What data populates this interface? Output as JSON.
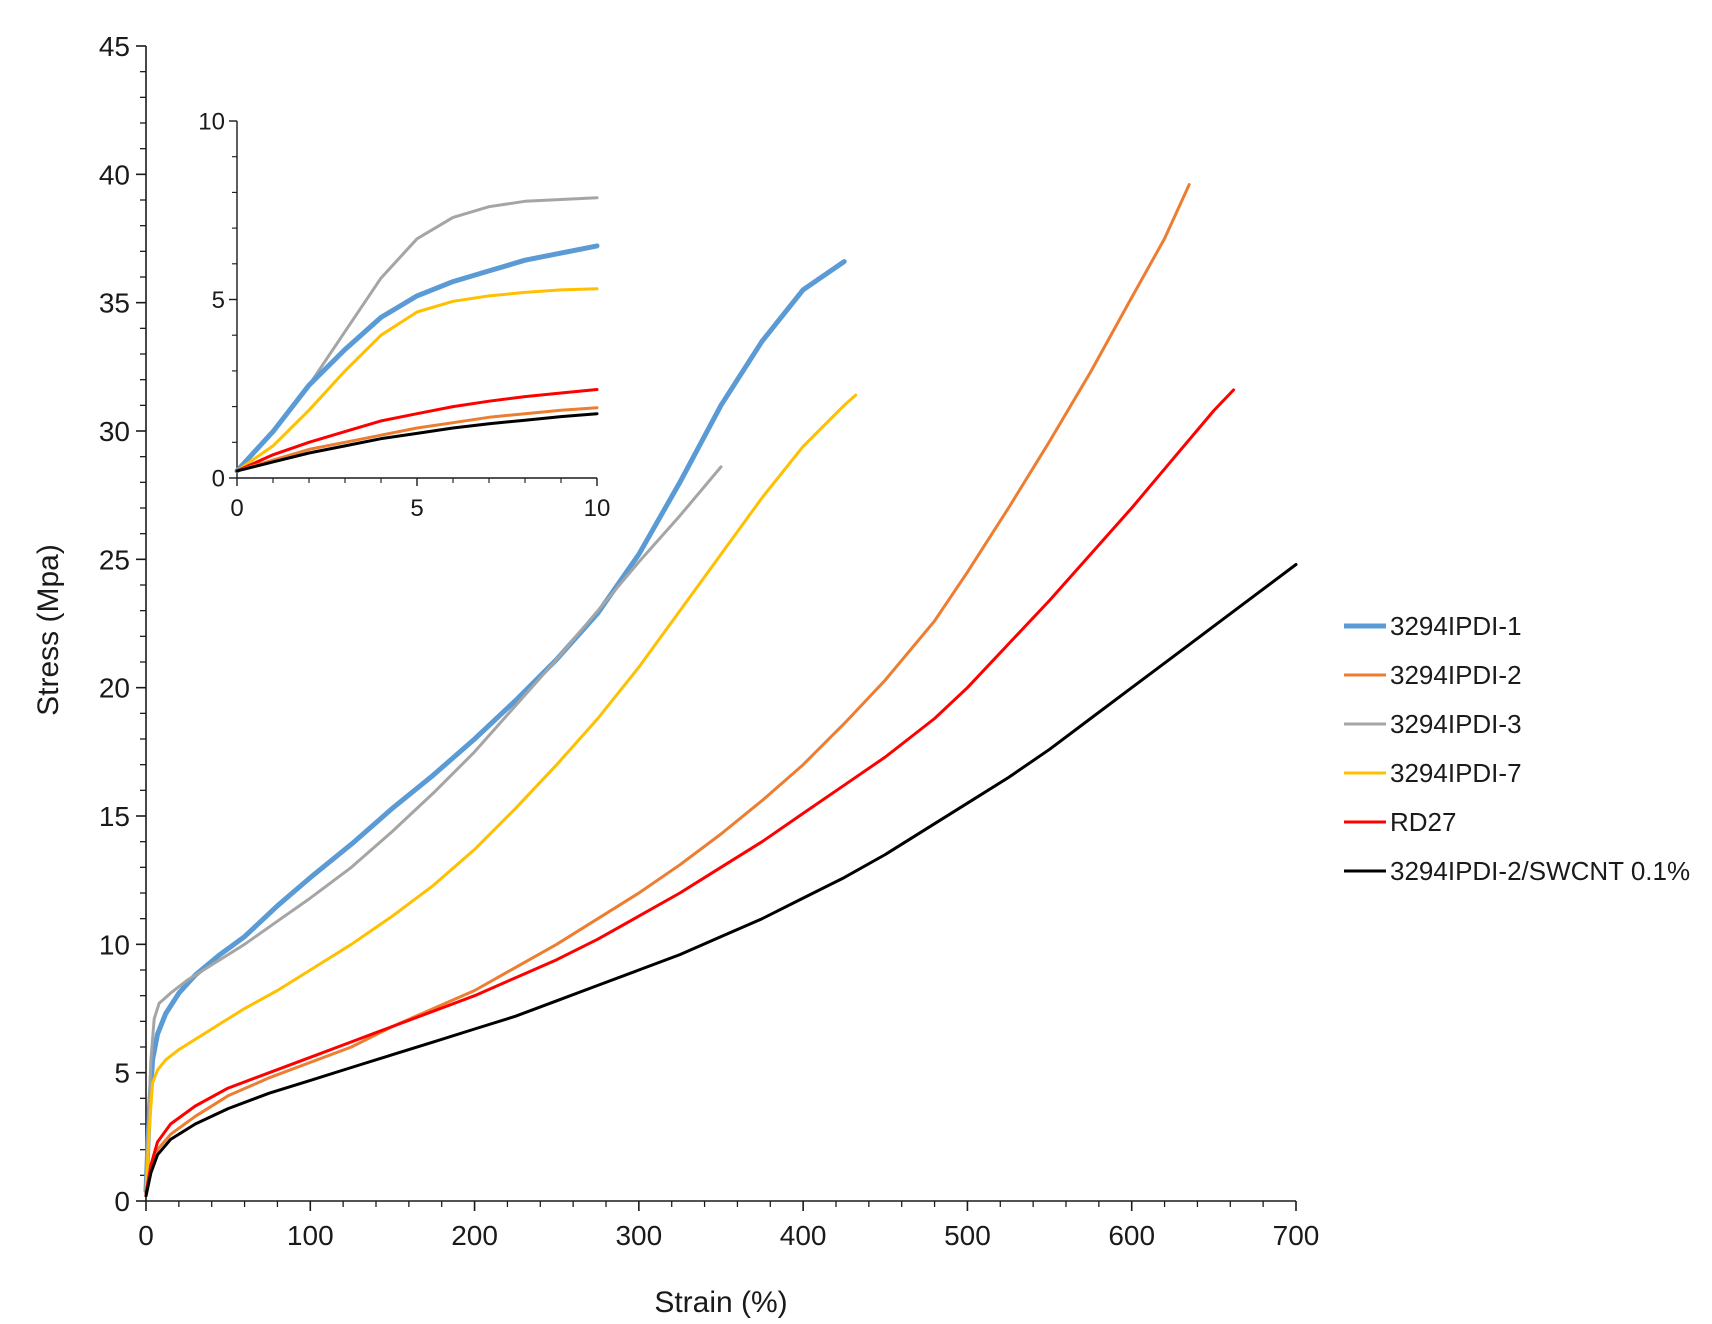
{
  "chart_data": [
    {
      "id": "main",
      "type": "line",
      "title": "",
      "xlabel": "Strain (%)",
      "ylabel": "Stress (Mpa)",
      "xlim": [
        0,
        700
      ],
      "ylim": [
        0,
        45
      ],
      "xticks": [
        0,
        100,
        200,
        300,
        400,
        500,
        600,
        700
      ],
      "yticks": [
        0,
        5,
        10,
        15,
        20,
        25,
        30,
        35,
        40,
        45
      ],
      "grid": false,
      "legend": "right",
      "series": [
        {
          "name": "3294IPDI-1",
          "color": "#5b9bd5",
          "width": 5,
          "points": [
            [
              0,
              0.4
            ],
            [
              2,
              3.5
            ],
            [
              4,
              5.5
            ],
            [
              7,
              6.5
            ],
            [
              12,
              7.3
            ],
            [
              20,
              8.1
            ],
            [
              30,
              8.8
            ],
            [
              45,
              9.6
            ],
            [
              60,
              10.3
            ],
            [
              80,
              11.5
            ],
            [
              100,
              12.6
            ],
            [
              125,
              13.9
            ],
            [
              150,
              15.3
            ],
            [
              175,
              16.6
            ],
            [
              200,
              18
            ],
            [
              225,
              19.5
            ],
            [
              250,
              21.1
            ],
            [
              275,
              22.9
            ],
            [
              300,
              25.2
            ],
            [
              325,
              28
            ],
            [
              350,
              31
            ],
            [
              375,
              33.5
            ],
            [
              400,
              35.5
            ],
            [
              425,
              36.6
            ]
          ]
        },
        {
          "name": "3294IPDI-2",
          "color": "#ed7d31",
          "width": 3,
          "points": [
            [
              0,
              0.2
            ],
            [
              3,
              1.2
            ],
            [
              7,
              2
            ],
            [
              15,
              2.6
            ],
            [
              30,
              3.3
            ],
            [
              50,
              4.1
            ],
            [
              75,
              4.8
            ],
            [
              100,
              5.4
            ],
            [
              125,
              6
            ],
            [
              150,
              6.8
            ],
            [
              175,
              7.5
            ],
            [
              200,
              8.2
            ],
            [
              225,
              9.1
            ],
            [
              250,
              10
            ],
            [
              275,
              11
            ],
            [
              300,
              12
            ],
            [
              325,
              13.1
            ],
            [
              350,
              14.3
            ],
            [
              375,
              15.6
            ],
            [
              400,
              17
            ],
            [
              425,
              18.6
            ],
            [
              450,
              20.3
            ],
            [
              480,
              22.6
            ],
            [
              500,
              24.5
            ],
            [
              525,
              27
            ],
            [
              550,
              29.6
            ],
            [
              575,
              32.3
            ],
            [
              600,
              35.2
            ],
            [
              620,
              37.5
            ],
            [
              635,
              39.6
            ]
          ]
        },
        {
          "name": "3294IPDI-3",
          "color": "#a5a5a5",
          "width": 3,
          "points": [
            [
              0,
              0.5
            ],
            [
              1.5,
              3
            ],
            [
              3,
              5.5
            ],
            [
              5,
              7.1
            ],
            [
              8,
              7.7
            ],
            [
              15,
              8.1
            ],
            [
              25,
              8.6
            ],
            [
              40,
              9.2
            ],
            [
              60,
              10
            ],
            [
              80,
              10.9
            ],
            [
              100,
              11.8
            ],
            [
              125,
              13
            ],
            [
              150,
              14.4
            ],
            [
              175,
              15.9
            ],
            [
              200,
              17.5
            ],
            [
              225,
              19.3
            ],
            [
              250,
              21.1
            ],
            [
              275,
              23
            ],
            [
              300,
              24.9
            ],
            [
              325,
              26.7
            ],
            [
              350,
              28.6
            ]
          ]
        },
        {
          "name": "3294IPDI-7",
          "color": "#ffc000",
          "width": 3,
          "points": [
            [
              0,
              0.3
            ],
            [
              2,
              2.8
            ],
            [
              4,
              4.6
            ],
            [
              7,
              5.1
            ],
            [
              12,
              5.5
            ],
            [
              20,
              5.9
            ],
            [
              30,
              6.3
            ],
            [
              45,
              6.9
            ],
            [
              60,
              7.5
            ],
            [
              80,
              8.2
            ],
            [
              100,
              9
            ],
            [
              125,
              10
            ],
            [
              150,
              11.1
            ],
            [
              175,
              12.3
            ],
            [
              200,
              13.7
            ],
            [
              225,
              15.3
            ],
            [
              250,
              17
            ],
            [
              275,
              18.8
            ],
            [
              300,
              20.8
            ],
            [
              325,
              23
            ],
            [
              350,
              25.2
            ],
            [
              375,
              27.4
            ],
            [
              400,
              29.4
            ],
            [
              425,
              31
            ],
            [
              432,
              31.4
            ]
          ]
        },
        {
          "name": "RD27",
          "color": "#ff0000",
          "width": 3,
          "points": [
            [
              0,
              0.3
            ],
            [
              3,
              1.4
            ],
            [
              7,
              2.3
            ],
            [
              15,
              3
            ],
            [
              30,
              3.7
            ],
            [
              50,
              4.4
            ],
            [
              75,
              5
            ],
            [
              100,
              5.6
            ],
            [
              125,
              6.2
            ],
            [
              150,
              6.8
            ],
            [
              175,
              7.4
            ],
            [
              200,
              8
            ],
            [
              225,
              8.7
            ],
            [
              250,
              9.4
            ],
            [
              275,
              10.2
            ],
            [
              300,
              11.1
            ],
            [
              325,
              12
            ],
            [
              350,
              13
            ],
            [
              375,
              14
            ],
            [
              400,
              15.1
            ],
            [
              425,
              16.2
            ],
            [
              450,
              17.3
            ],
            [
              480,
              18.8
            ],
            [
              500,
              20
            ],
            [
              525,
              21.7
            ],
            [
              550,
              23.4
            ],
            [
              575,
              25.2
            ],
            [
              600,
              27
            ],
            [
              625,
              28.9
            ],
            [
              650,
              30.8
            ],
            [
              662,
              31.6
            ]
          ]
        },
        {
          "name": "3294IPDI-2/SWCNT 0.1%",
          "color": "#000000",
          "width": 3,
          "points": [
            [
              0,
              0.2
            ],
            [
              3,
              1.1
            ],
            [
              7,
              1.8
            ],
            [
              15,
              2.4
            ],
            [
              30,
              3
            ],
            [
              50,
              3.6
            ],
            [
              75,
              4.2
            ],
            [
              100,
              4.7
            ],
            [
              125,
              5.2
            ],
            [
              150,
              5.7
            ],
            [
              175,
              6.2
            ],
            [
              200,
              6.7
            ],
            [
              225,
              7.2
            ],
            [
              250,
              7.8
            ],
            [
              275,
              8.4
            ],
            [
              300,
              9
            ],
            [
              325,
              9.6
            ],
            [
              350,
              10.3
            ],
            [
              375,
              11
            ],
            [
              400,
              11.8
            ],
            [
              425,
              12.6
            ],
            [
              450,
              13.5
            ],
            [
              475,
              14.5
            ],
            [
              500,
              15.5
            ],
            [
              525,
              16.5
            ],
            [
              550,
              17.6
            ],
            [
              575,
              18.8
            ],
            [
              600,
              20
            ],
            [
              625,
              21.2
            ],
            [
              650,
              22.4
            ],
            [
              675,
              23.6
            ],
            [
              700,
              24.8
            ]
          ]
        }
      ]
    },
    {
      "id": "inset",
      "type": "line",
      "title": "",
      "xlabel": "",
      "ylabel": "",
      "xlim": [
        0,
        10
      ],
      "ylim": [
        0,
        10
      ],
      "xticks": [
        0,
        5,
        10
      ],
      "yticks": [
        0,
        5,
        10
      ],
      "grid": false,
      "legend": "none",
      "series": [
        {
          "name": "3294IPDI-3",
          "color": "#a5a5a5",
          "width": 3,
          "points": [
            [
              0,
              0.2
            ],
            [
              1,
              1.3
            ],
            [
              2,
              2.6
            ],
            [
              3,
              4.1
            ],
            [
              4,
              5.6
            ],
            [
              5,
              6.7
            ],
            [
              6,
              7.3
            ],
            [
              7,
              7.6
            ],
            [
              8,
              7.75
            ],
            [
              9,
              7.8
            ],
            [
              10,
              7.85
            ]
          ]
        },
        {
          "name": "3294IPDI-1",
          "color": "#5b9bd5",
          "width": 5,
          "points": [
            [
              0,
              0.2
            ],
            [
              1,
              1.3
            ],
            [
              2,
              2.6
            ],
            [
              3,
              3.6
            ],
            [
              4,
              4.5
            ],
            [
              5,
              5.1
            ],
            [
              6,
              5.5
            ],
            [
              7,
              5.8
            ],
            [
              8,
              6.1
            ],
            [
              9,
              6.3
            ],
            [
              10,
              6.5
            ]
          ]
        },
        {
          "name": "3294IPDI-7",
          "color": "#ffc000",
          "width": 3,
          "points": [
            [
              0,
              0.2
            ],
            [
              1,
              0.9
            ],
            [
              2,
              1.9
            ],
            [
              3,
              3
            ],
            [
              4,
              4
            ],
            [
              5,
              4.65
            ],
            [
              6,
              4.95
            ],
            [
              7,
              5.1
            ],
            [
              8,
              5.2
            ],
            [
              9,
              5.27
            ],
            [
              10,
              5.3
            ]
          ]
        },
        {
          "name": "RD27",
          "color": "#ff0000",
          "width": 3,
          "points": [
            [
              0,
              0.2
            ],
            [
              1,
              0.65
            ],
            [
              2,
              1
            ],
            [
              3,
              1.3
            ],
            [
              4,
              1.6
            ],
            [
              5,
              1.8
            ],
            [
              6,
              2
            ],
            [
              7,
              2.15
            ],
            [
              8,
              2.28
            ],
            [
              9,
              2.38
            ],
            [
              10,
              2.48
            ]
          ]
        },
        {
          "name": "3294IPDI-2",
          "color": "#ed7d31",
          "width": 3,
          "points": [
            [
              0,
              0.2
            ],
            [
              1,
              0.5
            ],
            [
              2,
              0.8
            ],
            [
              3,
              1
            ],
            [
              4,
              1.2
            ],
            [
              5,
              1.4
            ],
            [
              6,
              1.55
            ],
            [
              7,
              1.7
            ],
            [
              8,
              1.8
            ],
            [
              9,
              1.9
            ],
            [
              10,
              1.97
            ]
          ]
        },
        {
          "name": "3294IPDI-2/SWCNT 0.1%",
          "color": "#000000",
          "width": 3,
          "points": [
            [
              0,
              0.2
            ],
            [
              1,
              0.45
            ],
            [
              2,
              0.7
            ],
            [
              3,
              0.9
            ],
            [
              4,
              1.1
            ],
            [
              5,
              1.25
            ],
            [
              6,
              1.4
            ],
            [
              7,
              1.52
            ],
            [
              8,
              1.62
            ],
            [
              9,
              1.72
            ],
            [
              10,
              1.8
            ]
          ]
        }
      ]
    }
  ]
}
